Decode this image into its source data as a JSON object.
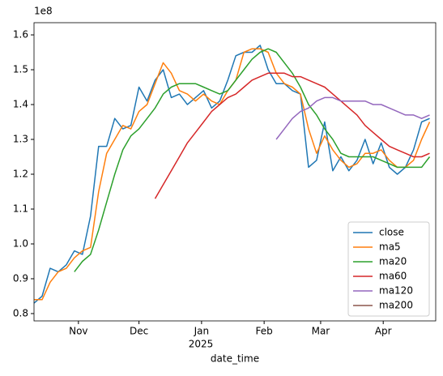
{
  "chart_data": {
    "type": "line",
    "xlabel": "date_time",
    "y_offset_label": "1e8",
    "x_offset_label": "2025",
    "x": [
      0,
      4,
      8,
      12,
      16,
      20,
      24,
      28,
      32,
      36,
      40,
      44,
      48,
      52,
      56,
      60,
      64,
      68,
      72,
      76,
      80,
      84,
      88,
      92,
      96,
      100,
      104,
      108,
      112,
      116,
      120,
      124,
      128,
      132,
      136,
      140,
      144,
      148,
      152,
      156,
      160,
      164,
      168,
      172,
      176,
      180,
      184,
      188,
      192,
      196
    ],
    "xlim": [
      0,
      199
    ],
    "xticks": [
      {
        "value": 22,
        "label": "Nov"
      },
      {
        "value": 52,
        "label": "Dec"
      },
      {
        "value": 83,
        "label": "Jan"
      },
      {
        "value": 114,
        "label": "Feb"
      },
      {
        "value": 142,
        "label": "Mar"
      },
      {
        "value": 173,
        "label": "Apr"
      }
    ],
    "ylim": [
      0.779,
      1.635
    ],
    "yticks": [
      0.8,
      0.9,
      {
        "value": 1.0,
        "label": "1.0"
      },
      1.1,
      1.2,
      1.3,
      1.4,
      1.5,
      1.6
    ],
    "grid": false,
    "legend": "lower right",
    "series": [
      {
        "name": "close",
        "color": "#1f77b4",
        "values": [
          0.83,
          0.85,
          0.93,
          0.92,
          0.94,
          0.98,
          0.97,
          1.08,
          1.28,
          1.28,
          1.36,
          1.33,
          1.34,
          1.45,
          1.41,
          1.47,
          1.5,
          1.42,
          1.43,
          1.4,
          1.42,
          1.44,
          1.39,
          1.41,
          1.47,
          1.54,
          1.55,
          1.55,
          1.57,
          1.5,
          1.46,
          1.46,
          1.44,
          1.43,
          1.22,
          1.24,
          1.35,
          1.21,
          1.25,
          1.21,
          1.24,
          1.3,
          1.23,
          1.29,
          1.22,
          1.2,
          1.22,
          1.27,
          1.35,
          1.36
        ]
      },
      {
        "name": "ma5",
        "color": "#ff7f0e",
        "values": [
          0.84,
          0.84,
          0.89,
          0.92,
          0.93,
          0.96,
          0.98,
          0.99,
          1.15,
          1.26,
          1.3,
          1.34,
          1.33,
          1.38,
          1.4,
          1.46,
          1.52,
          1.49,
          1.44,
          1.43,
          1.41,
          1.43,
          1.41,
          1.4,
          1.44,
          1.47,
          1.55,
          1.56,
          1.56,
          1.55,
          1.49,
          1.46,
          1.45,
          1.43,
          1.33,
          1.26,
          1.31,
          1.27,
          1.24,
          1.22,
          1.23,
          1.26,
          1.26,
          1.27,
          1.24,
          1.22,
          1.22,
          1.24,
          1.3,
          1.35
        ]
      },
      {
        "name": "ma20",
        "color": "#2ca02c",
        "values": [
          null,
          null,
          null,
          null,
          null,
          0.92,
          0.95,
          0.97,
          1.04,
          1.12,
          1.2,
          1.27,
          1.31,
          1.33,
          1.36,
          1.39,
          1.43,
          1.45,
          1.46,
          1.46,
          1.46,
          1.45,
          1.44,
          1.43,
          1.44,
          1.47,
          1.5,
          1.53,
          1.55,
          1.56,
          1.55,
          1.52,
          1.49,
          1.45,
          1.4,
          1.37,
          1.33,
          1.3,
          1.26,
          1.25,
          1.25,
          1.25,
          1.25,
          1.24,
          1.23,
          1.22,
          1.22,
          1.22,
          1.22,
          1.25
        ]
      },
      {
        "name": "ma60",
        "color": "#d62728",
        "values": [
          null,
          null,
          null,
          null,
          null,
          null,
          null,
          null,
          null,
          null,
          null,
          null,
          null,
          null,
          null,
          1.13,
          1.17,
          1.21,
          1.25,
          1.29,
          1.32,
          1.35,
          1.38,
          1.4,
          1.42,
          1.43,
          1.45,
          1.47,
          1.48,
          1.49,
          1.49,
          1.49,
          1.48,
          1.48,
          1.47,
          1.46,
          1.45,
          1.43,
          1.41,
          1.39,
          1.37,
          1.34,
          1.32,
          1.3,
          1.28,
          1.27,
          1.26,
          1.25,
          1.25,
          1.26
        ]
      },
      {
        "name": "ma120",
        "color": "#9467bd",
        "values": [
          null,
          null,
          null,
          null,
          null,
          null,
          null,
          null,
          null,
          null,
          null,
          null,
          null,
          null,
          null,
          null,
          null,
          null,
          null,
          null,
          null,
          null,
          null,
          null,
          null,
          null,
          null,
          null,
          null,
          null,
          1.3,
          1.33,
          1.36,
          1.38,
          1.39,
          1.41,
          1.42,
          1.42,
          1.41,
          1.41,
          1.41,
          1.41,
          1.4,
          1.4,
          1.39,
          1.38,
          1.37,
          1.37,
          1.36,
          1.37
        ]
      },
      {
        "name": "ma200",
        "color": "#8c564b",
        "values": [
          null,
          null,
          null,
          null,
          null,
          null,
          null,
          null,
          null,
          null,
          null,
          null,
          null,
          null,
          null,
          null,
          null,
          null,
          null,
          null,
          null,
          null,
          null,
          null,
          null,
          null,
          null,
          null,
          null,
          null,
          null,
          null,
          null,
          null,
          null,
          null,
          null,
          null,
          null,
          null,
          null,
          null,
          null,
          null,
          null,
          null,
          null,
          null,
          null,
          null
        ]
      }
    ]
  }
}
